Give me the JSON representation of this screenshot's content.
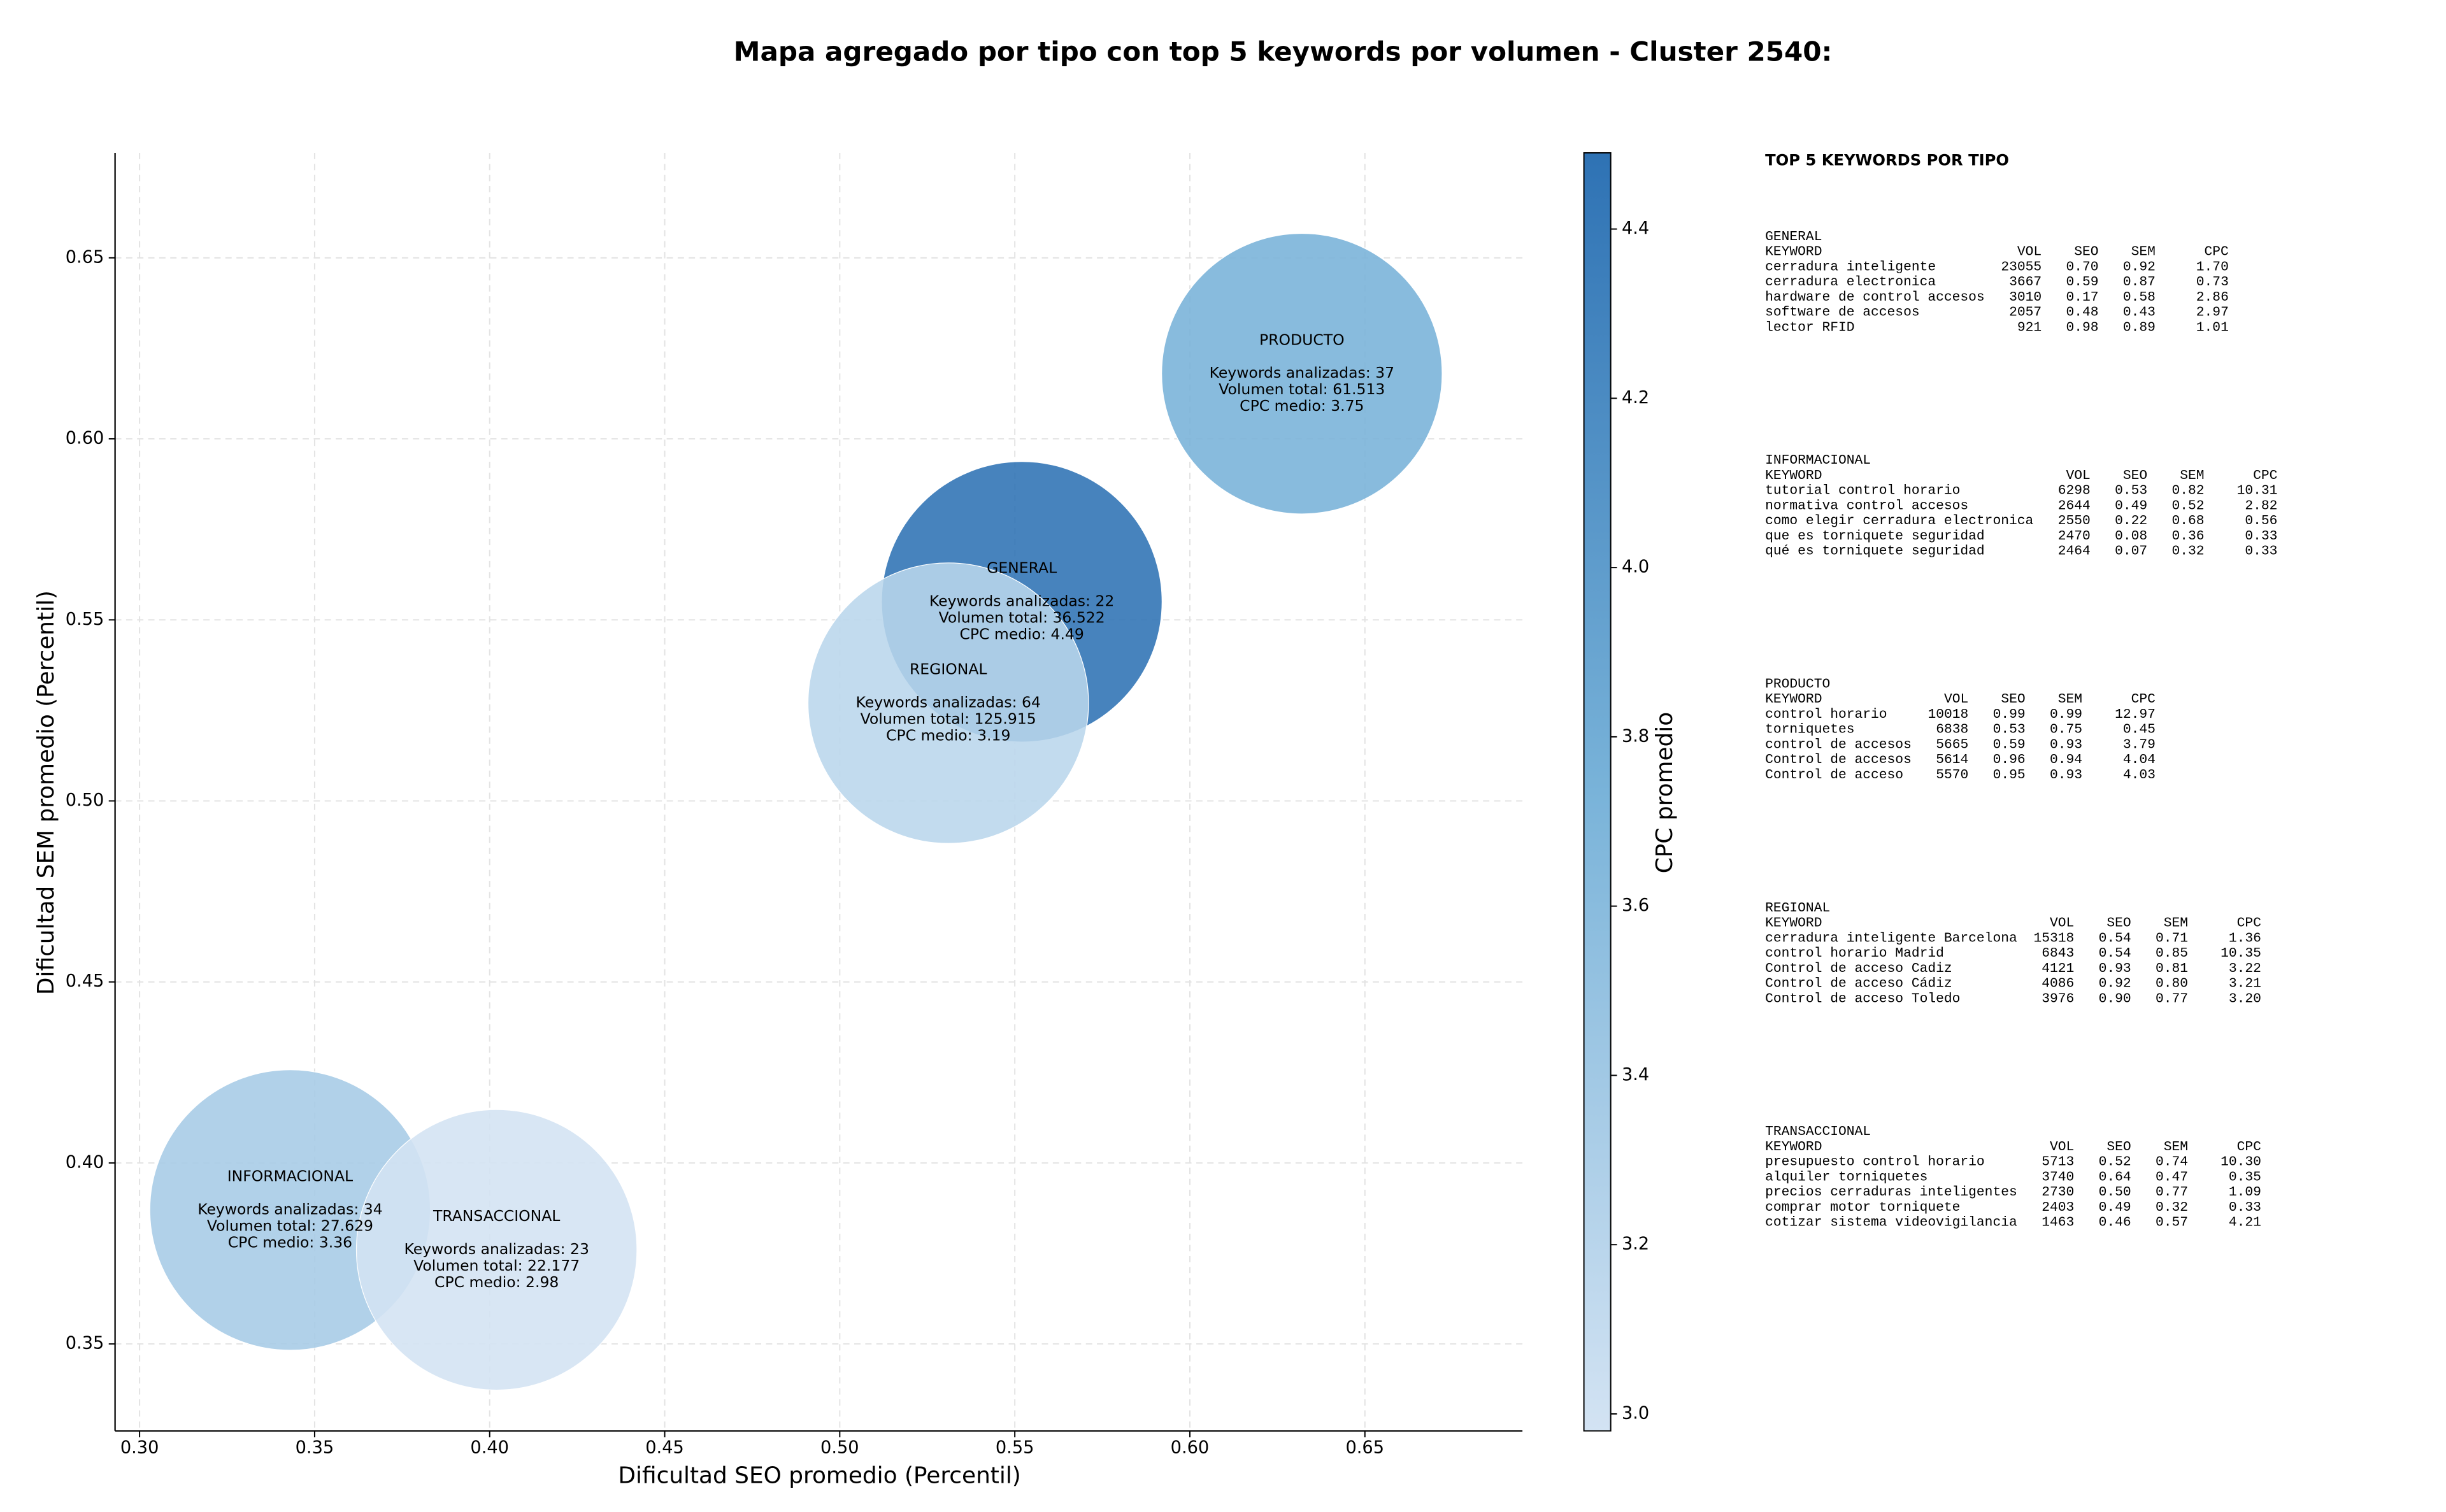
{
  "chart_data": {
    "type": "bubble",
    "title": "Mapa agregado por tipo con top 5 keywords por volumen - Cluster 2540:",
    "x_label": "Dificultad SEO promedio (Percentil)",
    "y_label": "Dificultad SEM promedio (Percentil)",
    "xlim": [
      0.293,
      0.695
    ],
    "ylim": [
      0.326,
      0.679
    ],
    "xticks": [
      {
        "value": 0.3,
        "label": "0.30"
      },
      0.35,
      {
        "value": 0.4,
        "label": "0.40"
      },
      0.45,
      {
        "value": 0.5,
        "label": "0.50"
      },
      0.55,
      {
        "value": 0.6,
        "label": "0.60"
      },
      0.65
    ],
    "yticks": [
      0.35,
      {
        "value": 0.4,
        "label": "0.40"
      },
      0.45,
      {
        "value": 0.5,
        "label": "0.50"
      },
      0.55,
      {
        "value": 0.6,
        "label": "0.60"
      },
      0.65
    ],
    "grid": true,
    "colorbar_label": "CPC promedio",
    "clim": [
      2.98,
      4.49
    ],
    "cticks": [
      {
        "value": 3,
        "label": "3.0"
      },
      3.2,
      3.4,
      3.6,
      3.8,
      {
        "value": 4,
        "label": "4.0"
      },
      4.2,
      4.4
    ],
    "colormap": [
      "#d3e3f3",
      "#79b3d9",
      "#2e72b4"
    ],
    "points": [
      {
        "name": "GENERAL",
        "x": 0.552,
        "y": 0.555,
        "cpc": 4.49,
        "lines": [
          "Keywords analizadas: 22",
          "Volumen total: 36.522",
          "CPC medio: 4.49"
        ]
      },
      {
        "name": "INFORMACIONAL",
        "x": 0.343,
        "y": 0.387,
        "cpc": 3.36,
        "lines": [
          "Keywords analizadas: 34",
          "Volumen total: 27.629",
          "CPC medio: 3.36"
        ]
      },
      {
        "name": "PRODUCTO",
        "x": 0.632,
        "y": 0.618,
        "cpc": 3.75,
        "lines": [
          "Keywords analizadas: 37",
          "Volumen total: 61.513",
          "CPC medio: 3.75"
        ]
      },
      {
        "name": "REGIONAL",
        "x": 0.531,
        "y": 0.527,
        "cpc": 3.19,
        "lines": [
          "Keywords analizadas: 64",
          "Volumen total: 125.915",
          "CPC medio: 3.19"
        ]
      },
      {
        "name": "TRANSACCIONAL",
        "x": 0.402,
        "y": 0.376,
        "cpc": 2.98,
        "lines": [
          "Keywords analizadas: 23",
          "Volumen total: 22.177",
          "CPC medio: 2.98"
        ]
      }
    ]
  },
  "panel": {
    "title": "TOP 5 KEYWORDS POR TIPO",
    "columns": [
      "KEYWORD",
      "VOL",
      "SEO",
      "SEM",
      "CPC"
    ],
    "groups": [
      {
        "name": "GENERAL",
        "rows": [
          [
            "cerradura inteligente",
            "23055",
            "0.70",
            "0.92",
            "1.70"
          ],
          [
            "cerradura electronica",
            "3667",
            "0.59",
            "0.87",
            "0.73"
          ],
          [
            "hardware de control accesos",
            "3010",
            "0.17",
            "0.58",
            "2.86"
          ],
          [
            "software de accesos",
            "2057",
            "0.48",
            "0.43",
            "2.97"
          ],
          [
            "lector RFID",
            "921",
            "0.98",
            "0.89",
            "1.01"
          ]
        ]
      },
      {
        "name": "INFORMACIONAL",
        "rows": [
          [
            "tutorial control horario",
            "6298",
            "0.53",
            "0.82",
            "10.31"
          ],
          [
            "normativa control accesos",
            "2644",
            "0.49",
            "0.52",
            "2.82"
          ],
          [
            "como elegir cerradura electronica",
            "2550",
            "0.22",
            "0.68",
            "0.56"
          ],
          [
            "que es torniquete seguridad",
            "2470",
            "0.08",
            "0.36",
            "0.33"
          ],
          [
            "qué es torniquete seguridad",
            "2464",
            "0.07",
            "0.32",
            "0.33"
          ]
        ]
      },
      {
        "name": "PRODUCTO",
        "rows": [
          [
            "control horario",
            "10018",
            "0.99",
            "0.99",
            "12.97"
          ],
          [
            "torniquetes",
            "6838",
            "0.53",
            "0.75",
            "0.45"
          ],
          [
            "control de accesos",
            "5665",
            "0.59",
            "0.93",
            "3.79"
          ],
          [
            "Control de accesos",
            "5614",
            "0.96",
            "0.94",
            "4.04"
          ],
          [
            "Control de acceso",
            "5570",
            "0.95",
            "0.93",
            "4.03"
          ]
        ]
      },
      {
        "name": "REGIONAL",
        "rows": [
          [
            "cerradura inteligente Barcelona",
            "15318",
            "0.54",
            "0.71",
            "1.36"
          ],
          [
            "control horario Madrid",
            "6843",
            "0.54",
            "0.85",
            "10.35"
          ],
          [
            "Control de acceso Cadiz",
            "4121",
            "0.93",
            "0.81",
            "3.22"
          ],
          [
            "Control de acceso Cádiz",
            "4086",
            "0.92",
            "0.80",
            "3.21"
          ],
          [
            "Control de acceso Toledo",
            "3976",
            "0.90",
            "0.77",
            "3.20"
          ]
        ]
      },
      {
        "name": "TRANSACCIONAL",
        "rows": [
          [
            "presupuesto control horario",
            "5713",
            "0.52",
            "0.74",
            "10.30"
          ],
          [
            "alquiler torniquetes",
            "3740",
            "0.64",
            "0.47",
            "0.35"
          ],
          [
            "precios cerraduras inteligentes",
            "2730",
            "0.50",
            "0.77",
            "1.09"
          ],
          [
            "comprar motor torniquete",
            "2403",
            "0.49",
            "0.32",
            "0.33"
          ],
          [
            "cotizar sistema videovigilancia",
            "1463",
            "0.46",
            "0.57",
            "4.21"
          ]
        ]
      }
    ]
  }
}
